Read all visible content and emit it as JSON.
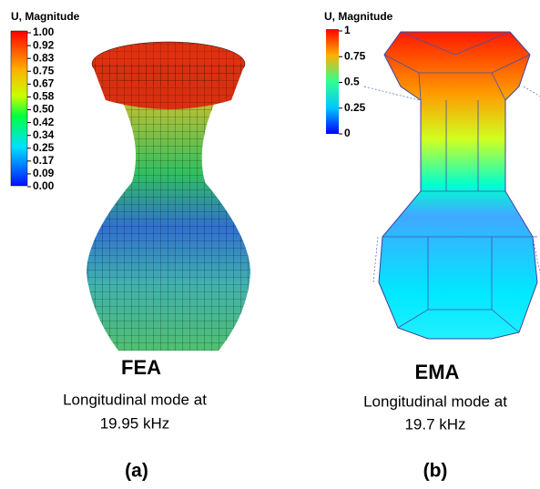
{
  "panels": [
    {
      "legend_title": "U, Magnitude",
      "legend_ticks": [
        "1.00",
        "0.92",
        "0.83",
        "0.75",
        "0.67",
        "0.58",
        "0.50",
        "0.42",
        "0.34",
        "0.25",
        "0.17",
        "0.09",
        "0.00"
      ],
      "method": "FEA",
      "caption": "Longitudinal mode at",
      "frequency": "19.95 kHz",
      "label": "(a)"
    },
    {
      "legend_title": "U, Magnitude",
      "legend_ticks": [
        "1",
        "0.75",
        "0.5",
        "0.25",
        "0"
      ],
      "method": "EMA",
      "caption": "Longitudinal mode at",
      "frequency": "19.7 kHz",
      "label": "(b)"
    }
  ]
}
